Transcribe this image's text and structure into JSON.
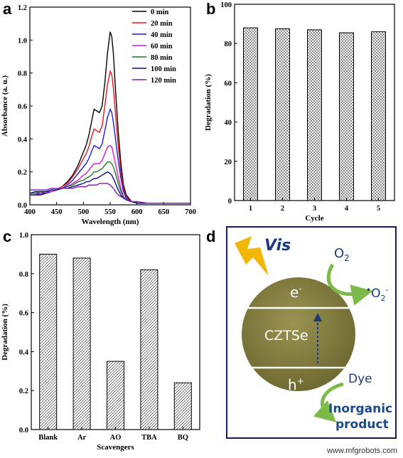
{
  "watermark": "www.mfgrobots.com",
  "chart_data": [
    {
      "panel": "a",
      "type": "line",
      "xlabel": "Wavelength (nm)",
      "ylabel": "Absorbance (a. u.)",
      "xlim": [
        400,
        700
      ],
      "ylim": [
        0,
        1.2
      ],
      "xticks": [
        400,
        450,
        500,
        550,
        600,
        650,
        700
      ],
      "yticks": [
        0.0,
        0.2,
        0.4,
        0.6,
        0.8,
        1.0,
        1.2
      ],
      "legend_position": "top-right",
      "x": [
        400,
        410,
        420,
        430,
        440,
        450,
        460,
        470,
        480,
        490,
        500,
        505,
        510,
        515,
        520,
        525,
        530,
        535,
        540,
        545,
        550,
        553,
        556,
        560,
        565,
        570,
        575,
        580,
        590,
        600,
        620,
        650,
        700
      ],
      "series": [
        {
          "name": "0 min",
          "color": "#000000",
          "values": [
            0.06,
            0.06,
            0.06,
            0.07,
            0.08,
            0.09,
            0.11,
            0.14,
            0.18,
            0.24,
            0.32,
            0.36,
            0.42,
            0.5,
            0.58,
            0.57,
            0.56,
            0.6,
            0.74,
            0.92,
            1.05,
            1.02,
            0.92,
            0.7,
            0.45,
            0.25,
            0.12,
            0.06,
            0.02,
            0.01,
            0.01,
            0.01,
            0.01
          ]
        },
        {
          "name": "20 min",
          "color": "#e8141b",
          "values": [
            0.06,
            0.06,
            0.07,
            0.07,
            0.08,
            0.09,
            0.11,
            0.13,
            0.17,
            0.22,
            0.28,
            0.31,
            0.35,
            0.41,
            0.46,
            0.45,
            0.44,
            0.48,
            0.6,
            0.73,
            0.81,
            0.79,
            0.71,
            0.55,
            0.36,
            0.2,
            0.1,
            0.05,
            0.02,
            0.01,
            0.01,
            0.01,
            0.01
          ]
        },
        {
          "name": "40 min",
          "color": "#1c1cdc",
          "values": [
            0.06,
            0.06,
            0.07,
            0.07,
            0.08,
            0.09,
            0.1,
            0.12,
            0.15,
            0.19,
            0.23,
            0.25,
            0.28,
            0.32,
            0.36,
            0.35,
            0.34,
            0.37,
            0.45,
            0.53,
            0.58,
            0.56,
            0.5,
            0.4,
            0.27,
            0.16,
            0.08,
            0.04,
            0.02,
            0.01,
            0.01,
            0.01,
            0.01
          ]
        },
        {
          "name": "60 min",
          "color": "#d61ad6",
          "values": [
            0.07,
            0.07,
            0.07,
            0.08,
            0.08,
            0.09,
            0.1,
            0.11,
            0.13,
            0.15,
            0.18,
            0.19,
            0.21,
            0.23,
            0.25,
            0.25,
            0.25,
            0.27,
            0.31,
            0.35,
            0.36,
            0.35,
            0.31,
            0.25,
            0.17,
            0.1,
            0.05,
            0.03,
            0.02,
            0.01,
            0.01,
            0.01,
            0.01
          ]
        },
        {
          "name": "80 min",
          "color": "#1a7a1a",
          "values": [
            0.07,
            0.07,
            0.08,
            0.08,
            0.09,
            0.09,
            0.1,
            0.11,
            0.12,
            0.14,
            0.15,
            0.16,
            0.17,
            0.18,
            0.2,
            0.2,
            0.21,
            0.22,
            0.24,
            0.26,
            0.26,
            0.25,
            0.23,
            0.19,
            0.13,
            0.08,
            0.05,
            0.03,
            0.02,
            0.01,
            0.01,
            0.01,
            0.01
          ]
        },
        {
          "name": "100 min",
          "color": "#0b0b8a",
          "values": [
            0.07,
            0.08,
            0.08,
            0.08,
            0.09,
            0.09,
            0.1,
            0.1,
            0.11,
            0.12,
            0.13,
            0.14,
            0.14,
            0.15,
            0.16,
            0.16,
            0.17,
            0.18,
            0.19,
            0.2,
            0.19,
            0.18,
            0.16,
            0.13,
            0.09,
            0.06,
            0.04,
            0.03,
            0.02,
            0.01,
            0.01,
            0.01,
            0.01
          ]
        },
        {
          "name": "120 min",
          "color": "#7a1aa8",
          "values": [
            0.09,
            0.09,
            0.09,
            0.09,
            0.1,
            0.1,
            0.1,
            0.1,
            0.1,
            0.11,
            0.11,
            0.11,
            0.12,
            0.12,
            0.12,
            0.12,
            0.13,
            0.13,
            0.13,
            0.13,
            0.12,
            0.11,
            0.1,
            0.08,
            0.06,
            0.05,
            0.04,
            0.03,
            0.02,
            0.02,
            0.01,
            0.01,
            0.01
          ]
        }
      ]
    },
    {
      "panel": "b",
      "type": "bar",
      "xlabel": "Cycle",
      "ylabel": "Degradation (%)",
      "categories": [
        "1",
        "2",
        "3",
        "4",
        "5"
      ],
      "values": [
        88,
        87.5,
        87,
        85.5,
        86
      ],
      "ylim": [
        0,
        100
      ],
      "yticks": [
        0,
        20,
        40,
        60,
        80,
        100
      ]
    },
    {
      "panel": "c",
      "type": "bar",
      "xlabel": "Scavengers",
      "ylabel": "Degradation (%)",
      "categories": [
        "Blank",
        "Ar",
        "AO",
        "TBA",
        "BQ"
      ],
      "values": [
        0.9,
        0.88,
        0.35,
        0.82,
        0.24
      ],
      "ylim": [
        0,
        1.0
      ],
      "yticks": [
        0.0,
        0.2,
        0.4,
        0.6,
        0.8,
        1.0
      ],
      "ytick_labels": [
        "0.0",
        "0.2",
        "0.4",
        "0.6",
        "0.8",
        "1.0"
      ]
    }
  ],
  "schematic": {
    "panel": "d",
    "light": "Vis",
    "electron": "e",
    "electron_sup": "-",
    "hole": "h",
    "hole_sup": "+",
    "material": "CZTSe",
    "oxygen": "O",
    "oxygen_sub": "2",
    "superoxide_dot": "•",
    "superoxide": "O",
    "superoxide_sub": "2",
    "superoxide_sup": "-",
    "dye": "Dye",
    "product_line1": "Inorganic",
    "product_line2": "product",
    "colors": {
      "frame": "#1a1a5a",
      "particle": "#8a8241",
      "arrow": "#7cbb4a",
      "lightning": "#f2b705",
      "text_blue": "#1a4a8a"
    }
  }
}
